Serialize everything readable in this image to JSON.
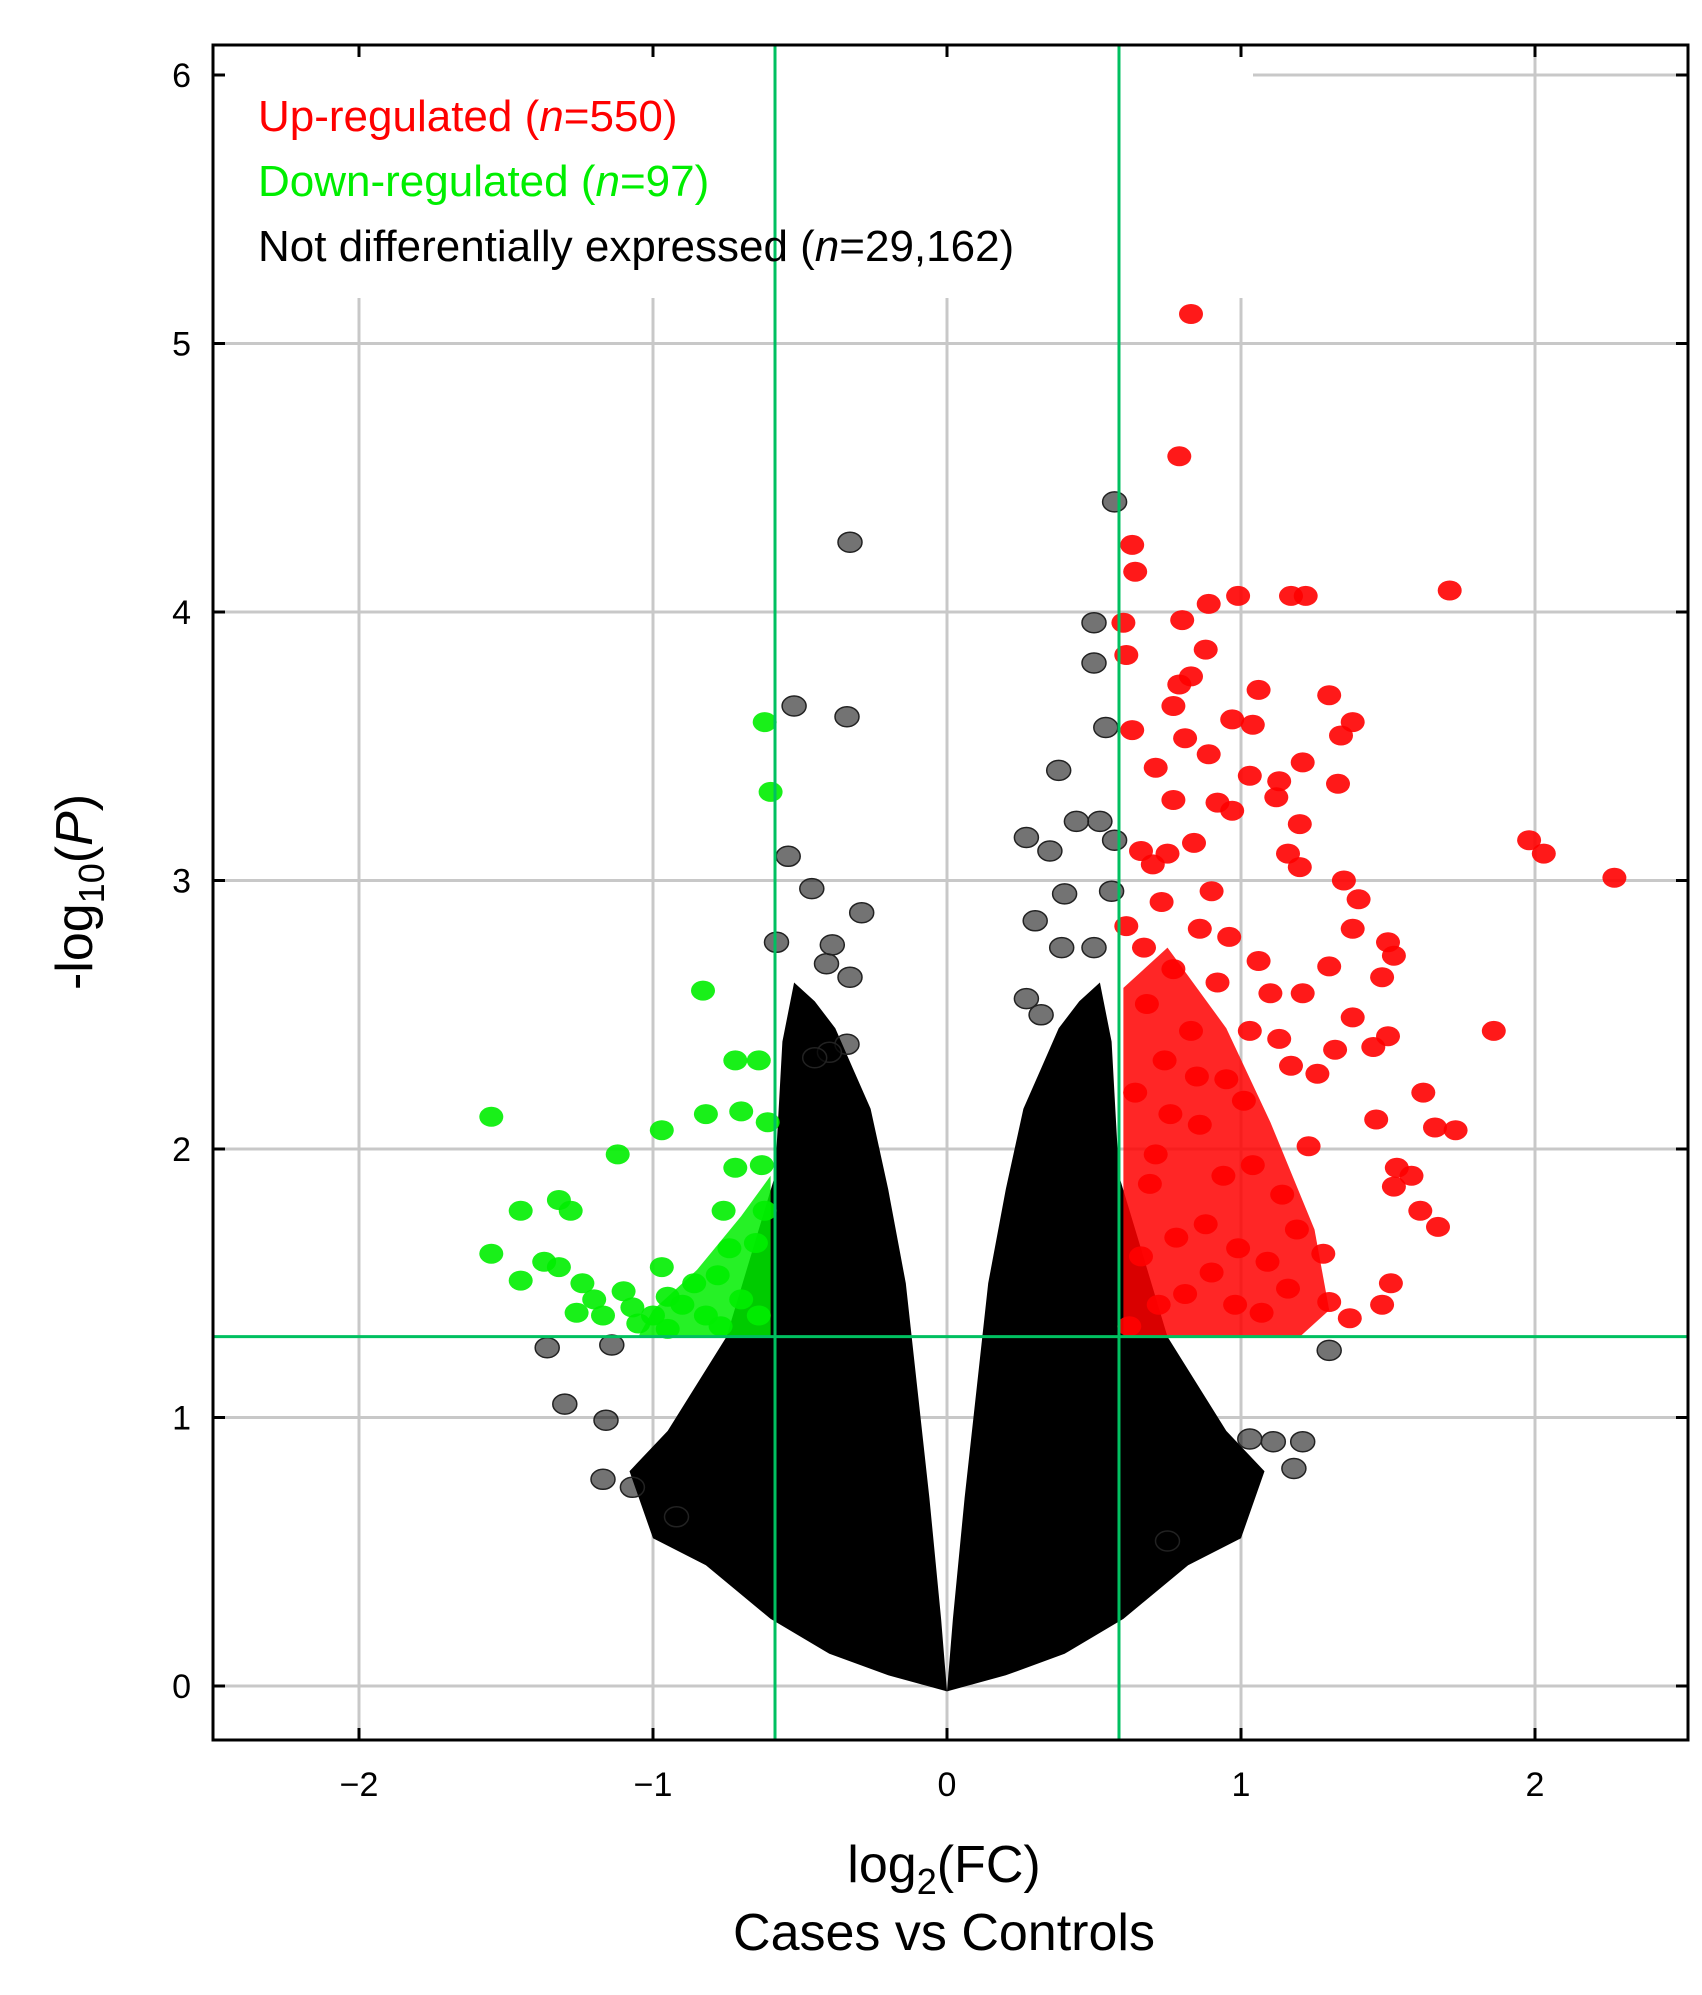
{
  "chart_data": {
    "type": "scatter",
    "title": "",
    "subtitle": "Cases vs Controls",
    "xlabel": {
      "base": "log",
      "sub": "2",
      "rest": "(FC)"
    },
    "ylabel": {
      "base": "-log",
      "sub": "10",
      "open": "(",
      "var": "P",
      "close": ")"
    },
    "xlim": [
      -2.5,
      2.5
    ],
    "ylim": [
      -0.2,
      6.1
    ],
    "xticks": [
      -2,
      -1,
      0,
      1,
      2
    ],
    "xtick_labels": [
      "−2",
      "−1",
      "0",
      "1",
      "2"
    ],
    "yticks": [
      0,
      1,
      2,
      3,
      4,
      5,
      6
    ],
    "ytick_labels": [
      "0",
      "1",
      "2",
      "3",
      "4",
      "5",
      "6"
    ],
    "grid": true,
    "thresholds": {
      "fc_low": -0.585,
      "fc_high": 0.585,
      "p_line": 1.301
    },
    "colors": {
      "up": "#ff0000",
      "down": "#00ee00",
      "ns": "#000000",
      "threshold_line": "#00c060",
      "grid": "#c8c8c8"
    },
    "legend": {
      "position": "top-left",
      "entries": [
        {
          "pre": "Up-regulated (",
          "n_label": "n",
          "post": "=550)",
          "color": "#ff0000"
        },
        {
          "pre": "Down-regulated (",
          "n_label": "n",
          "post": "=97)",
          "color": "#00ee00"
        },
        {
          "pre": "Not differentially expressed (",
          "n_label": "n",
          "post": "=29,162)",
          "color": "#000000"
        }
      ]
    },
    "series": [
      {
        "name": "Up-regulated",
        "color": "#ff0000",
        "points": [
          [
            0.83,
            5.11
          ],
          [
            0.79,
            4.58
          ],
          [
            0.63,
            4.25
          ],
          [
            0.64,
            4.15
          ],
          [
            0.6,
            3.96
          ],
          [
            0.8,
            3.97
          ],
          [
            0.89,
            4.03
          ],
          [
            0.99,
            4.06
          ],
          [
            1.17,
            4.06
          ],
          [
            1.22,
            4.06
          ],
          [
            1.71,
            4.08
          ],
          [
            0.61,
            3.84
          ],
          [
            0.83,
            3.76
          ],
          [
            0.88,
            3.86
          ],
          [
            0.79,
            3.73
          ],
          [
            0.77,
            3.65
          ],
          [
            1.06,
            3.71
          ],
          [
            1.3,
            3.69
          ],
          [
            0.63,
            3.56
          ],
          [
            0.81,
            3.53
          ],
          [
            0.97,
            3.6
          ],
          [
            1.04,
            3.58
          ],
          [
            1.38,
            3.59
          ],
          [
            1.34,
            3.54
          ],
          [
            0.71,
            3.42
          ],
          [
            0.89,
            3.47
          ],
          [
            1.03,
            3.39
          ],
          [
            1.13,
            3.37
          ],
          [
            1.21,
            3.44
          ],
          [
            1.33,
            3.36
          ],
          [
            0.77,
            3.3
          ],
          [
            0.92,
            3.29
          ],
          [
            0.97,
            3.26
          ],
          [
            1.12,
            3.31
          ],
          [
            1.2,
            3.21
          ],
          [
            0.66,
            3.11
          ],
          [
            0.7,
            3.06
          ],
          [
            0.75,
            3.1
          ],
          [
            0.84,
            3.14
          ],
          [
            1.16,
            3.1
          ],
          [
            1.2,
            3.05
          ],
          [
            1.98,
            3.15
          ],
          [
            2.03,
            3.1
          ],
          [
            2.27,
            3.01
          ],
          [
            0.61,
            2.83
          ],
          [
            0.73,
            2.92
          ],
          [
            0.9,
            2.96
          ],
          [
            1.35,
            3.0
          ],
          [
            1.4,
            2.93
          ],
          [
            0.67,
            2.75
          ],
          [
            0.86,
            2.82
          ],
          [
            0.96,
            2.79
          ],
          [
            1.06,
            2.7
          ],
          [
            1.38,
            2.82
          ],
          [
            1.5,
            2.77
          ],
          [
            0.77,
            2.67
          ],
          [
            1.3,
            2.68
          ],
          [
            1.52,
            2.72
          ],
          [
            1.48,
            2.64
          ],
          [
            1.1,
            2.58
          ],
          [
            1.21,
            2.58
          ],
          [
            1.38,
            2.49
          ],
          [
            1.03,
            2.44
          ],
          [
            1.13,
            2.41
          ],
          [
            1.32,
            2.37
          ],
          [
            1.45,
            2.38
          ],
          [
            1.5,
            2.42
          ],
          [
            1.86,
            2.44
          ],
          [
            1.17,
            2.31
          ],
          [
            1.26,
            2.28
          ],
          [
            1.62,
            2.21
          ],
          [
            1.46,
            2.11
          ],
          [
            1.66,
            2.08
          ],
          [
            1.73,
            2.07
          ],
          [
            1.53,
            1.93
          ],
          [
            1.58,
            1.9
          ],
          [
            1.52,
            1.86
          ],
          [
            1.61,
            1.77
          ],
          [
            1.67,
            1.71
          ],
          [
            1.51,
            1.5
          ],
          [
            1.48,
            1.42
          ],
          [
            1.3,
            1.43
          ],
          [
            1.37,
            1.37
          ],
          [
            1.16,
            1.48
          ],
          [
            0.62,
            1.34
          ],
          [
            0.71,
            1.98
          ],
          [
            0.76,
            2.13
          ],
          [
            0.88,
            1.72
          ],
          [
            1.04,
            1.94
          ],
          [
            0.95,
            2.26
          ],
          [
            0.68,
            2.54
          ],
          [
            0.83,
            2.44
          ],
          [
            0.92,
            2.62
          ],
          [
            1.14,
            1.83
          ],
          [
            1.23,
            2.01
          ],
          [
            0.66,
            1.6
          ],
          [
            0.81,
            1.46
          ],
          [
            0.99,
            1.63
          ],
          [
            1.07,
            1.39
          ],
          [
            0.74,
            2.33
          ],
          [
            0.86,
            2.09
          ],
          [
            1.01,
            2.18
          ],
          [
            0.69,
            1.87
          ],
          [
            0.9,
            1.54
          ],
          [
            1.19,
            1.7
          ],
          [
            0.64,
            2.21
          ],
          [
            0.78,
            1.67
          ],
          [
            0.94,
            1.9
          ],
          [
            1.09,
            1.58
          ],
          [
            0.72,
            1.42
          ],
          [
            0.85,
            2.27
          ],
          [
            1.28,
            1.61
          ],
          [
            0.98,
            1.42
          ]
        ]
      },
      {
        "name": "Down-regulated",
        "color": "#00ee00",
        "points": [
          [
            -0.62,
            3.59
          ],
          [
            -0.6,
            3.33
          ],
          [
            -1.55,
            2.12
          ],
          [
            -0.83,
            2.59
          ],
          [
            -0.64,
            2.33
          ],
          [
            -0.72,
            2.33
          ],
          [
            -0.97,
            2.07
          ],
          [
            -0.82,
            2.13
          ],
          [
            -0.7,
            2.14
          ],
          [
            -0.61,
            2.1
          ],
          [
            -1.12,
            1.98
          ],
          [
            -0.63,
            1.94
          ],
          [
            -0.72,
            1.93
          ],
          [
            -1.45,
            1.77
          ],
          [
            -1.32,
            1.81
          ],
          [
            -1.28,
            1.77
          ],
          [
            -0.76,
            1.77
          ],
          [
            -0.62,
            1.77
          ],
          [
            -1.55,
            1.61
          ],
          [
            -1.37,
            1.58
          ],
          [
            -1.32,
            1.56
          ],
          [
            -0.97,
            1.56
          ],
          [
            -0.74,
            1.63
          ],
          [
            -0.65,
            1.65
          ],
          [
            -1.45,
            1.51
          ],
          [
            -1.24,
            1.5
          ],
          [
            -1.2,
            1.44
          ],
          [
            -1.1,
            1.47
          ],
          [
            -0.95,
            1.45
          ],
          [
            -0.86,
            1.5
          ],
          [
            -0.78,
            1.53
          ],
          [
            -1.17,
            1.38
          ],
          [
            -1.26,
            1.39
          ],
          [
            -1.05,
            1.35
          ],
          [
            -1.0,
            1.38
          ],
          [
            -0.9,
            1.42
          ],
          [
            -0.82,
            1.38
          ],
          [
            -0.7,
            1.44
          ],
          [
            -0.64,
            1.38
          ],
          [
            -0.77,
            1.34
          ],
          [
            -0.95,
            1.33
          ],
          [
            -1.07,
            1.41
          ]
        ]
      },
      {
        "name": "Not differentially expressed",
        "color": "#000000",
        "points": [
          [
            0.57,
            4.41
          ],
          [
            -0.33,
            4.26
          ],
          [
            0.5,
            3.96
          ],
          [
            0.5,
            3.81
          ],
          [
            -0.52,
            3.65
          ],
          [
            -0.34,
            3.61
          ],
          [
            0.54,
            3.57
          ],
          [
            0.38,
            3.41
          ],
          [
            0.44,
            3.22
          ],
          [
            0.52,
            3.22
          ],
          [
            0.27,
            3.16
          ],
          [
            0.35,
            3.11
          ],
          [
            0.57,
            3.15
          ],
          [
            -0.54,
            3.09
          ],
          [
            -0.46,
            2.97
          ],
          [
            -0.29,
            2.88
          ],
          [
            0.3,
            2.85
          ],
          [
            0.4,
            2.95
          ],
          [
            0.56,
            2.96
          ],
          [
            -0.58,
            2.77
          ],
          [
            -0.39,
            2.76
          ],
          [
            -0.41,
            2.69
          ],
          [
            -0.33,
            2.64
          ],
          [
            0.39,
            2.75
          ],
          [
            0.5,
            2.75
          ],
          [
            0.27,
            2.56
          ],
          [
            -0.34,
            2.39
          ],
          [
            -0.4,
            2.36
          ],
          [
            -0.45,
            2.34
          ],
          [
            0.32,
            2.5
          ],
          [
            -1.36,
            1.26
          ],
          [
            -1.14,
            1.27
          ],
          [
            -1.3,
            1.05
          ],
          [
            -1.16,
            0.99
          ],
          [
            -1.17,
            0.77
          ],
          [
            -1.07,
            0.74
          ],
          [
            -0.92,
            0.63
          ],
          [
            1.3,
            1.25
          ],
          [
            1.21,
            0.91
          ],
          [
            1.11,
            0.91
          ],
          [
            1.03,
            0.92
          ],
          [
            1.18,
            0.81
          ],
          [
            0.75,
            0.54
          ]
        ]
      }
    ]
  }
}
